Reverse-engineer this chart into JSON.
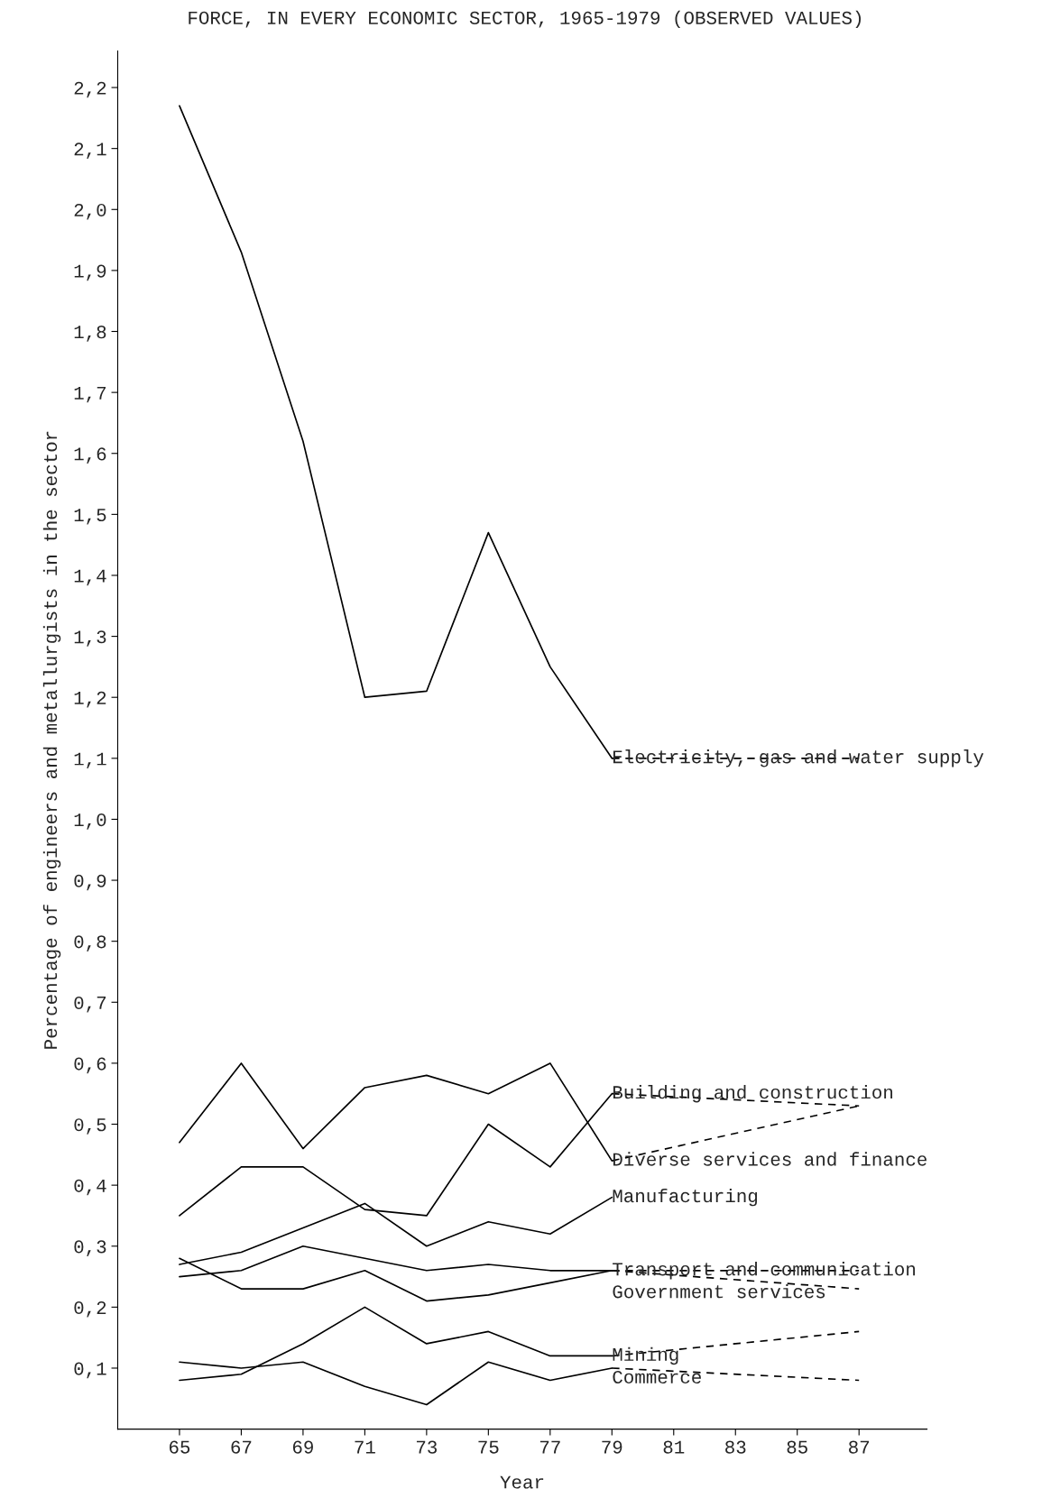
{
  "chart_data": {
    "type": "line",
    "title": "FORCE, IN EVERY ECONOMIC SECTOR, 1965-1979 (OBSERVED VALUES)",
    "xlabel": "Year",
    "ylabel": "Percentage of engineers and metallurgists in the sector",
    "xlim": [
      63,
      89.2
    ],
    "xticks": [
      65,
      67,
      69,
      71,
      73,
      75,
      77,
      79,
      81,
      83,
      85,
      87
    ],
    "ylim": [
      0,
      2.26
    ],
    "yticks": [
      {
        "value": 0.1,
        "label": "0,1"
      },
      {
        "value": 0.2,
        "label": "0,2"
      },
      {
        "value": 0.3,
        "label": "0,3"
      },
      {
        "value": 0.4,
        "label": "0,4"
      },
      {
        "value": 0.5,
        "label": "0,5"
      },
      {
        "value": 0.6,
        "label": "0,6"
      },
      {
        "value": 0.7,
        "label": "0,7"
      },
      {
        "value": 0.8,
        "label": "0,8"
      },
      {
        "value": 0.9,
        "label": "0,9"
      },
      {
        "value": 1.0,
        "label": "1,0"
      },
      {
        "value": 1.1,
        "label": "1,1"
      },
      {
        "value": 1.2,
        "label": "1,2"
      },
      {
        "value": 1.3,
        "label": "1,3"
      },
      {
        "value": 1.4,
        "label": "1,4"
      },
      {
        "value": 1.5,
        "label": "1,5"
      },
      {
        "value": 1.6,
        "label": "1,6"
      },
      {
        "value": 1.7,
        "label": "1,7"
      },
      {
        "value": 1.8,
        "label": "1,8"
      },
      {
        "value": 1.9,
        "label": "1,9"
      },
      {
        "value": 2.0,
        "label": "2,0"
      },
      {
        "value": 2.1,
        "label": "2,1"
      },
      {
        "value": 2.2,
        "label": "2,2"
      }
    ],
    "grid": false,
    "series": [
      {
        "color": "#000000",
        "line_style": "solid",
        "x": [
          65,
          67,
          69,
          71,
          73,
          75,
          77,
          79
        ],
        "values": [
          2.17,
          1.93,
          1.62,
          1.2,
          1.21,
          1.47,
          1.25,
          1.1
        ],
        "name": "Electricity, gas and water supply"
      },
      {
        "color": "#000000",
        "line_style": "dashed",
        "x": [
          79,
          87
        ],
        "values": [
          1.1,
          1.1
        ]
      },
      {
        "color": "#000000",
        "line_style": "solid",
        "x": [
          65,
          67,
          69,
          71,
          73,
          75,
          77,
          79
        ],
        "values": [
          0.35,
          0.43,
          0.43,
          0.36,
          0.35,
          0.5,
          0.43,
          0.55
        ],
        "name": "Building and construction"
      },
      {
        "color": "#000000",
        "line_style": "dashed",
        "x": [
          79,
          87
        ],
        "values": [
          0.55,
          0.53
        ]
      },
      {
        "color": "#000000",
        "line_style": "solid",
        "x": [
          65,
          67,
          69,
          71,
          73,
          75,
          77,
          79
        ],
        "values": [
          0.47,
          0.6,
          0.46,
          0.56,
          0.58,
          0.55,
          0.6,
          0.44
        ],
        "name": "Diverse services and finance"
      },
      {
        "color": "#000000",
        "line_style": "dashed",
        "x": [
          79,
          87
        ],
        "values": [
          0.44,
          0.53
        ]
      },
      {
        "color": "#000000",
        "line_style": "solid",
        "x": [
          65,
          67,
          69,
          71,
          73,
          75,
          77,
          79
        ],
        "values": [
          0.27,
          0.29,
          0.33,
          0.37,
          0.3,
          0.34,
          0.32,
          0.38
        ],
        "name": "Manufacturing"
      },
      {
        "color": "#000000",
        "line_style": "solid",
        "x": [
          65,
          67,
          69,
          71,
          73,
          75,
          77,
          79
        ],
        "values": [
          0.25,
          0.26,
          0.3,
          0.28,
          0.26,
          0.27,
          0.26,
          0.26
        ],
        "name": "Transport and communication"
      },
      {
        "color": "#000000",
        "line_style": "dashed",
        "x": [
          79,
          87
        ],
        "values": [
          0.26,
          0.26
        ]
      },
      {
        "color": "#000000",
        "line_style": "solid",
        "x": [
          65,
          67,
          69,
          71,
          73,
          75,
          77,
          79
        ],
        "values": [
          0.28,
          0.23,
          0.23,
          0.26,
          0.21,
          0.22,
          0.24,
          0.26
        ],
        "name": "Government services"
      },
      {
        "color": "#000000",
        "line_style": "dashed",
        "x": [
          79,
          87
        ],
        "values": [
          0.26,
          0.23
        ]
      },
      {
        "color": "#000000",
        "line_style": "solid",
        "x": [
          65,
          67,
          69,
          71,
          73,
          75,
          77,
          79
        ],
        "values": [
          0.08,
          0.09,
          0.14,
          0.2,
          0.14,
          0.16,
          0.12,
          0.12
        ],
        "name": "Mining"
      },
      {
        "color": "#000000",
        "line_style": "dashed",
        "x": [
          79,
          87
        ],
        "values": [
          0.12,
          0.16
        ]
      },
      {
        "color": "#000000",
        "line_style": "solid",
        "x": [
          65,
          67,
          69,
          71,
          73,
          75,
          77,
          79
        ],
        "values": [
          0.11,
          0.1,
          0.11,
          0.07,
          0.04,
          0.11,
          0.08,
          0.1
        ],
        "name": "Commerce"
      },
      {
        "color": "#000000",
        "line_style": "dashed",
        "x": [
          79,
          87
        ],
        "values": [
          0.1,
          0.08
        ]
      }
    ],
    "legend": false
  }
}
